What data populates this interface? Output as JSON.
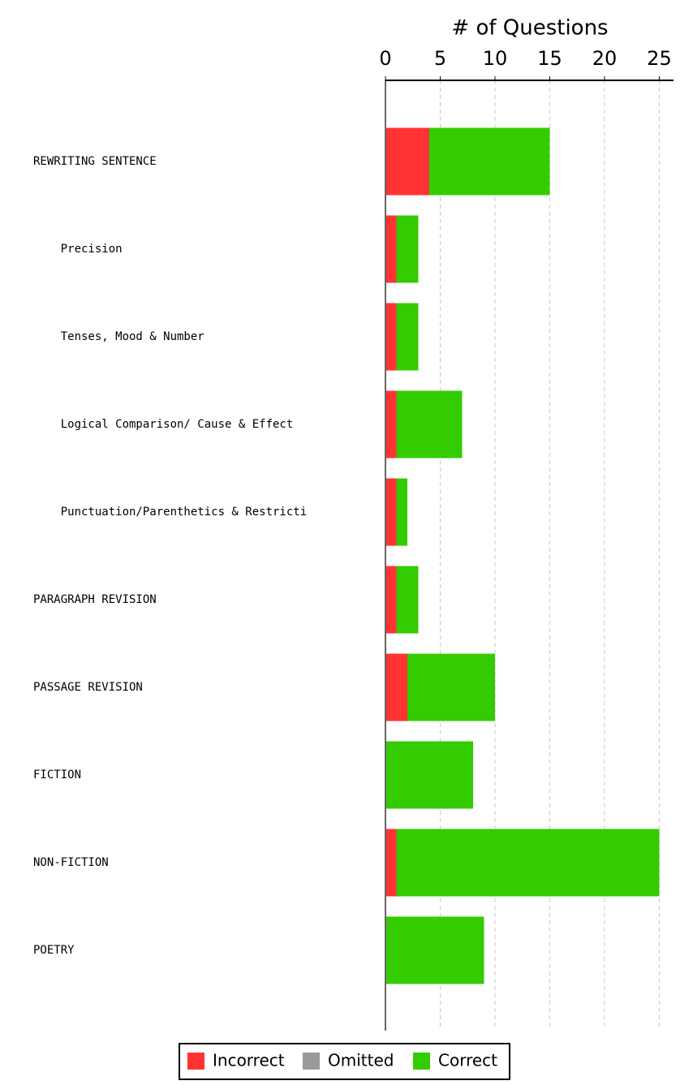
{
  "chart_data": {
    "type": "stacked_bar_horizontal",
    "xlabel": "# of Questions",
    "categories": [
      "REWRITING SENTENCE",
      "    Precision",
      "    Tenses, Mood & Number",
      "    Logical Comparison/ Cause & Effect",
      "    Punctuation/Parenthetics & Restricti",
      "PARAGRAPH REVISION",
      "PASSAGE REVISION",
      "FICTION",
      "NON-FICTION",
      "POETRY"
    ],
    "series": [
      {
        "name": "Incorrect",
        "color": "#ff3333",
        "values": [
          4,
          1,
          1,
          1,
          1,
          1,
          2,
          0,
          1,
          0
        ]
      },
      {
        "name": "Omitted",
        "color": "#999999",
        "values": [
          0,
          0,
          0,
          0,
          0,
          0,
          0,
          0,
          0,
          0
        ]
      },
      {
        "name": "Correct",
        "color": "#33cc00",
        "values": [
          11,
          2,
          2,
          6,
          1,
          2,
          8,
          8,
          24,
          9
        ]
      }
    ],
    "xlim": [
      0,
      26.3
    ],
    "xticks": [
      0,
      5,
      10,
      15,
      20,
      25
    ],
    "grid": true,
    "legend": "bottom"
  }
}
